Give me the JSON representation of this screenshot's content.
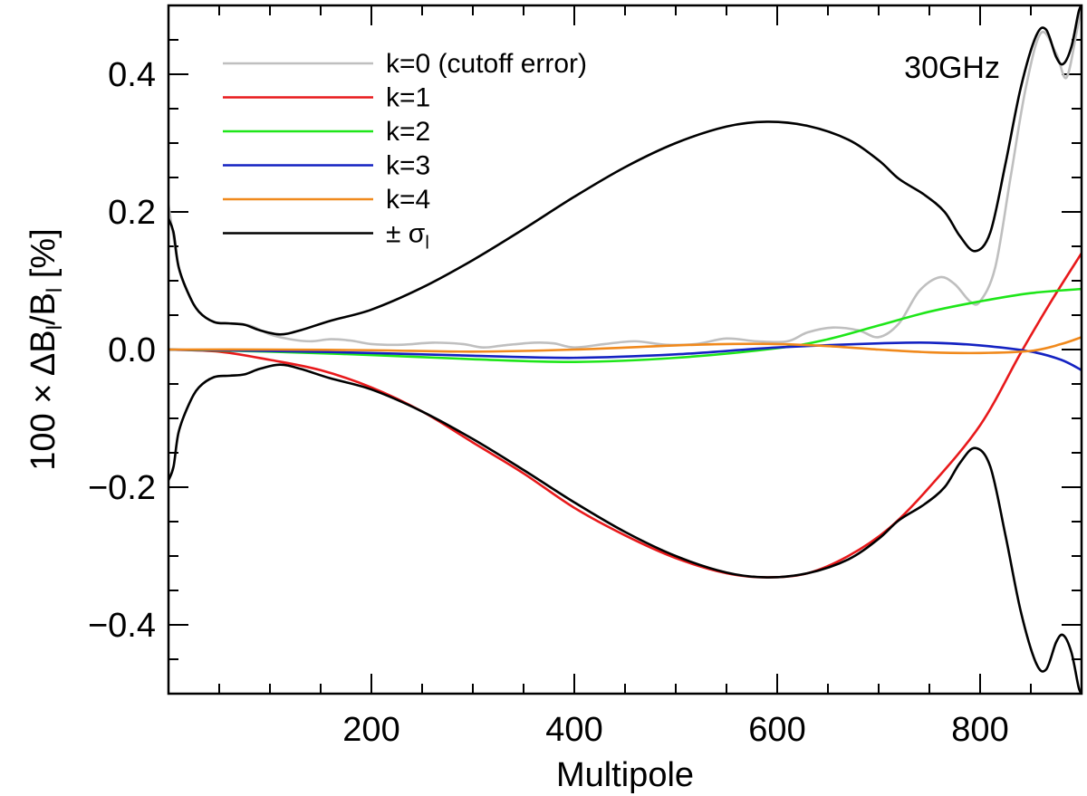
{
  "chart_data": {
    "type": "line",
    "xlabel": "Multipole",
    "ylabel": "100 × ΔB_l/B_l [%]",
    "ylabel_parts": {
      "prefix": "100 × ΔB",
      "sub1": "l",
      "mid": "/B",
      "sub2": "l",
      "suffix": " [%]"
    },
    "xlim": [
      0,
      900
    ],
    "ylim": [
      -0.5,
      0.5
    ],
    "xticks": [
      200,
      400,
      600,
      800
    ],
    "xtick_labels": [
      "200",
      "400",
      "600",
      "800"
    ],
    "yticks": [
      -0.4,
      -0.2,
      0.0,
      0.2,
      0.4
    ],
    "ytick_labels": [
      "−0.4",
      "−0.2",
      "0.0",
      "0.2",
      "0.4"
    ],
    "annotation": "30GHz",
    "legend_position": "top-left",
    "series": [
      {
        "name": "k=0 (cutoff error)",
        "color": "#bfbfbf",
        "points": [
          [
            0,
            0.21
          ],
          [
            10,
            0.12
          ],
          [
            20,
            0.08
          ],
          [
            30,
            0.055
          ],
          [
            45,
            0.04
          ],
          [
            60,
            0.038
          ],
          [
            80,
            0.035
          ],
          [
            100,
            0.022
          ],
          [
            120,
            0.015
          ],
          [
            140,
            0.012
          ],
          [
            160,
            0.015
          ],
          [
            180,
            0.013
          ],
          [
            200,
            0.008
          ],
          [
            230,
            0.007
          ],
          [
            260,
            0.01
          ],
          [
            290,
            0.008
          ],
          [
            310,
            0.003
          ],
          [
            330,
            0.006
          ],
          [
            360,
            0.01
          ],
          [
            380,
            0.009
          ],
          [
            400,
            0.003
          ],
          [
            430,
            0.008
          ],
          [
            460,
            0.012
          ],
          [
            490,
            0.007
          ],
          [
            520,
            0.008
          ],
          [
            550,
            0.016
          ],
          [
            580,
            0.012
          ],
          [
            610,
            0.012
          ],
          [
            630,
            0.025
          ],
          [
            655,
            0.032
          ],
          [
            680,
            0.028
          ],
          [
            700,
            0.018
          ],
          [
            720,
            0.038
          ],
          [
            740,
            0.085
          ],
          [
            760,
            0.105
          ],
          [
            775,
            0.095
          ],
          [
            790,
            0.07
          ],
          [
            800,
            0.07
          ],
          [
            815,
            0.12
          ],
          [
            830,
            0.25
          ],
          [
            845,
            0.38
          ],
          [
            860,
            0.46
          ],
          [
            875,
            0.43
          ],
          [
            885,
            0.395
          ],
          [
            895,
            0.46
          ],
          [
            900,
            0.5
          ]
        ]
      },
      {
        "name": "k=1",
        "color": "#e8191b",
        "points": [
          [
            0,
            0.0
          ],
          [
            50,
            -0.003
          ],
          [
            100,
            -0.015
          ],
          [
            150,
            -0.03
          ],
          [
            200,
            -0.055
          ],
          [
            250,
            -0.09
          ],
          [
            300,
            -0.135
          ],
          [
            350,
            -0.18
          ],
          [
            400,
            -0.23
          ],
          [
            450,
            -0.27
          ],
          [
            500,
            -0.303
          ],
          [
            550,
            -0.325
          ],
          [
            590,
            -0.331
          ],
          [
            630,
            -0.325
          ],
          [
            670,
            -0.3
          ],
          [
            710,
            -0.26
          ],
          [
            750,
            -0.2
          ],
          [
            800,
            -0.11
          ],
          [
            840,
            -0.005
          ],
          [
            870,
            0.07
          ],
          [
            900,
            0.14
          ]
        ]
      },
      {
        "name": "k=2",
        "color": "#1ee619",
        "points": [
          [
            0,
            0.0
          ],
          [
            100,
            -0.003
          ],
          [
            200,
            -0.008
          ],
          [
            300,
            -0.014
          ],
          [
            400,
            -0.018
          ],
          [
            500,
            -0.012
          ],
          [
            600,
            0.002
          ],
          [
            650,
            0.015
          ],
          [
            700,
            0.035
          ],
          [
            750,
            0.055
          ],
          [
            800,
            0.07
          ],
          [
            850,
            0.082
          ],
          [
            900,
            0.088
          ]
        ]
      },
      {
        "name": "k=3",
        "color": "#1422c2",
        "points": [
          [
            0,
            0.0
          ],
          [
            100,
            -0.002
          ],
          [
            200,
            -0.005
          ],
          [
            300,
            -0.009
          ],
          [
            400,
            -0.012
          ],
          [
            500,
            -0.007
          ],
          [
            600,
            0.003
          ],
          [
            700,
            0.009
          ],
          [
            750,
            0.01
          ],
          [
            800,
            0.006
          ],
          [
            850,
            -0.003
          ],
          [
            880,
            -0.015
          ],
          [
            900,
            -0.03
          ]
        ]
      },
      {
        "name": "k=4",
        "color": "#f0891c",
        "points": [
          [
            0,
            0.0
          ],
          [
            100,
            0.0
          ],
          [
            200,
            -0.001
          ],
          [
            300,
            -0.003
          ],
          [
            400,
            0.0
          ],
          [
            500,
            0.006
          ],
          [
            550,
            0.008
          ],
          [
            600,
            0.008
          ],
          [
            650,
            0.005
          ],
          [
            700,
            0.0
          ],
          [
            750,
            -0.004
          ],
          [
            800,
            -0.005
          ],
          [
            850,
            -0.002
          ],
          [
            880,
            0.008
          ],
          [
            900,
            0.018
          ]
        ]
      },
      {
        "name": "± σ_l",
        "name_parts": {
          "prefix": "± σ",
          "sub": "l"
        },
        "color": "#000000",
        "points": [
          [
            0,
            0.19
          ],
          [
            5,
            0.17
          ],
          [
            10,
            0.12
          ],
          [
            20,
            0.08
          ],
          [
            30,
            0.055
          ],
          [
            45,
            0.04
          ],
          [
            60,
            0.038
          ],
          [
            75,
            0.036
          ],
          [
            90,
            0.028
          ],
          [
            110,
            0.022
          ],
          [
            130,
            0.028
          ],
          [
            160,
            0.042
          ],
          [
            200,
            0.058
          ],
          [
            250,
            0.09
          ],
          [
            300,
            0.13
          ],
          [
            350,
            0.175
          ],
          [
            400,
            0.222
          ],
          [
            450,
            0.265
          ],
          [
            500,
            0.3
          ],
          [
            550,
            0.324
          ],
          [
            590,
            0.331
          ],
          [
            630,
            0.325
          ],
          [
            670,
            0.305
          ],
          [
            700,
            0.275
          ],
          [
            720,
            0.248
          ],
          [
            745,
            0.225
          ],
          [
            765,
            0.2
          ],
          [
            780,
            0.165
          ],
          [
            795,
            0.143
          ],
          [
            810,
            0.17
          ],
          [
            825,
            0.27
          ],
          [
            840,
            0.38
          ],
          [
            855,
            0.455
          ],
          [
            865,
            0.465
          ],
          [
            875,
            0.425
          ],
          [
            882,
            0.415
          ],
          [
            890,
            0.44
          ],
          [
            897,
            0.49
          ],
          [
            900,
            0.5
          ]
        ],
        "mirror": true
      }
    ]
  }
}
